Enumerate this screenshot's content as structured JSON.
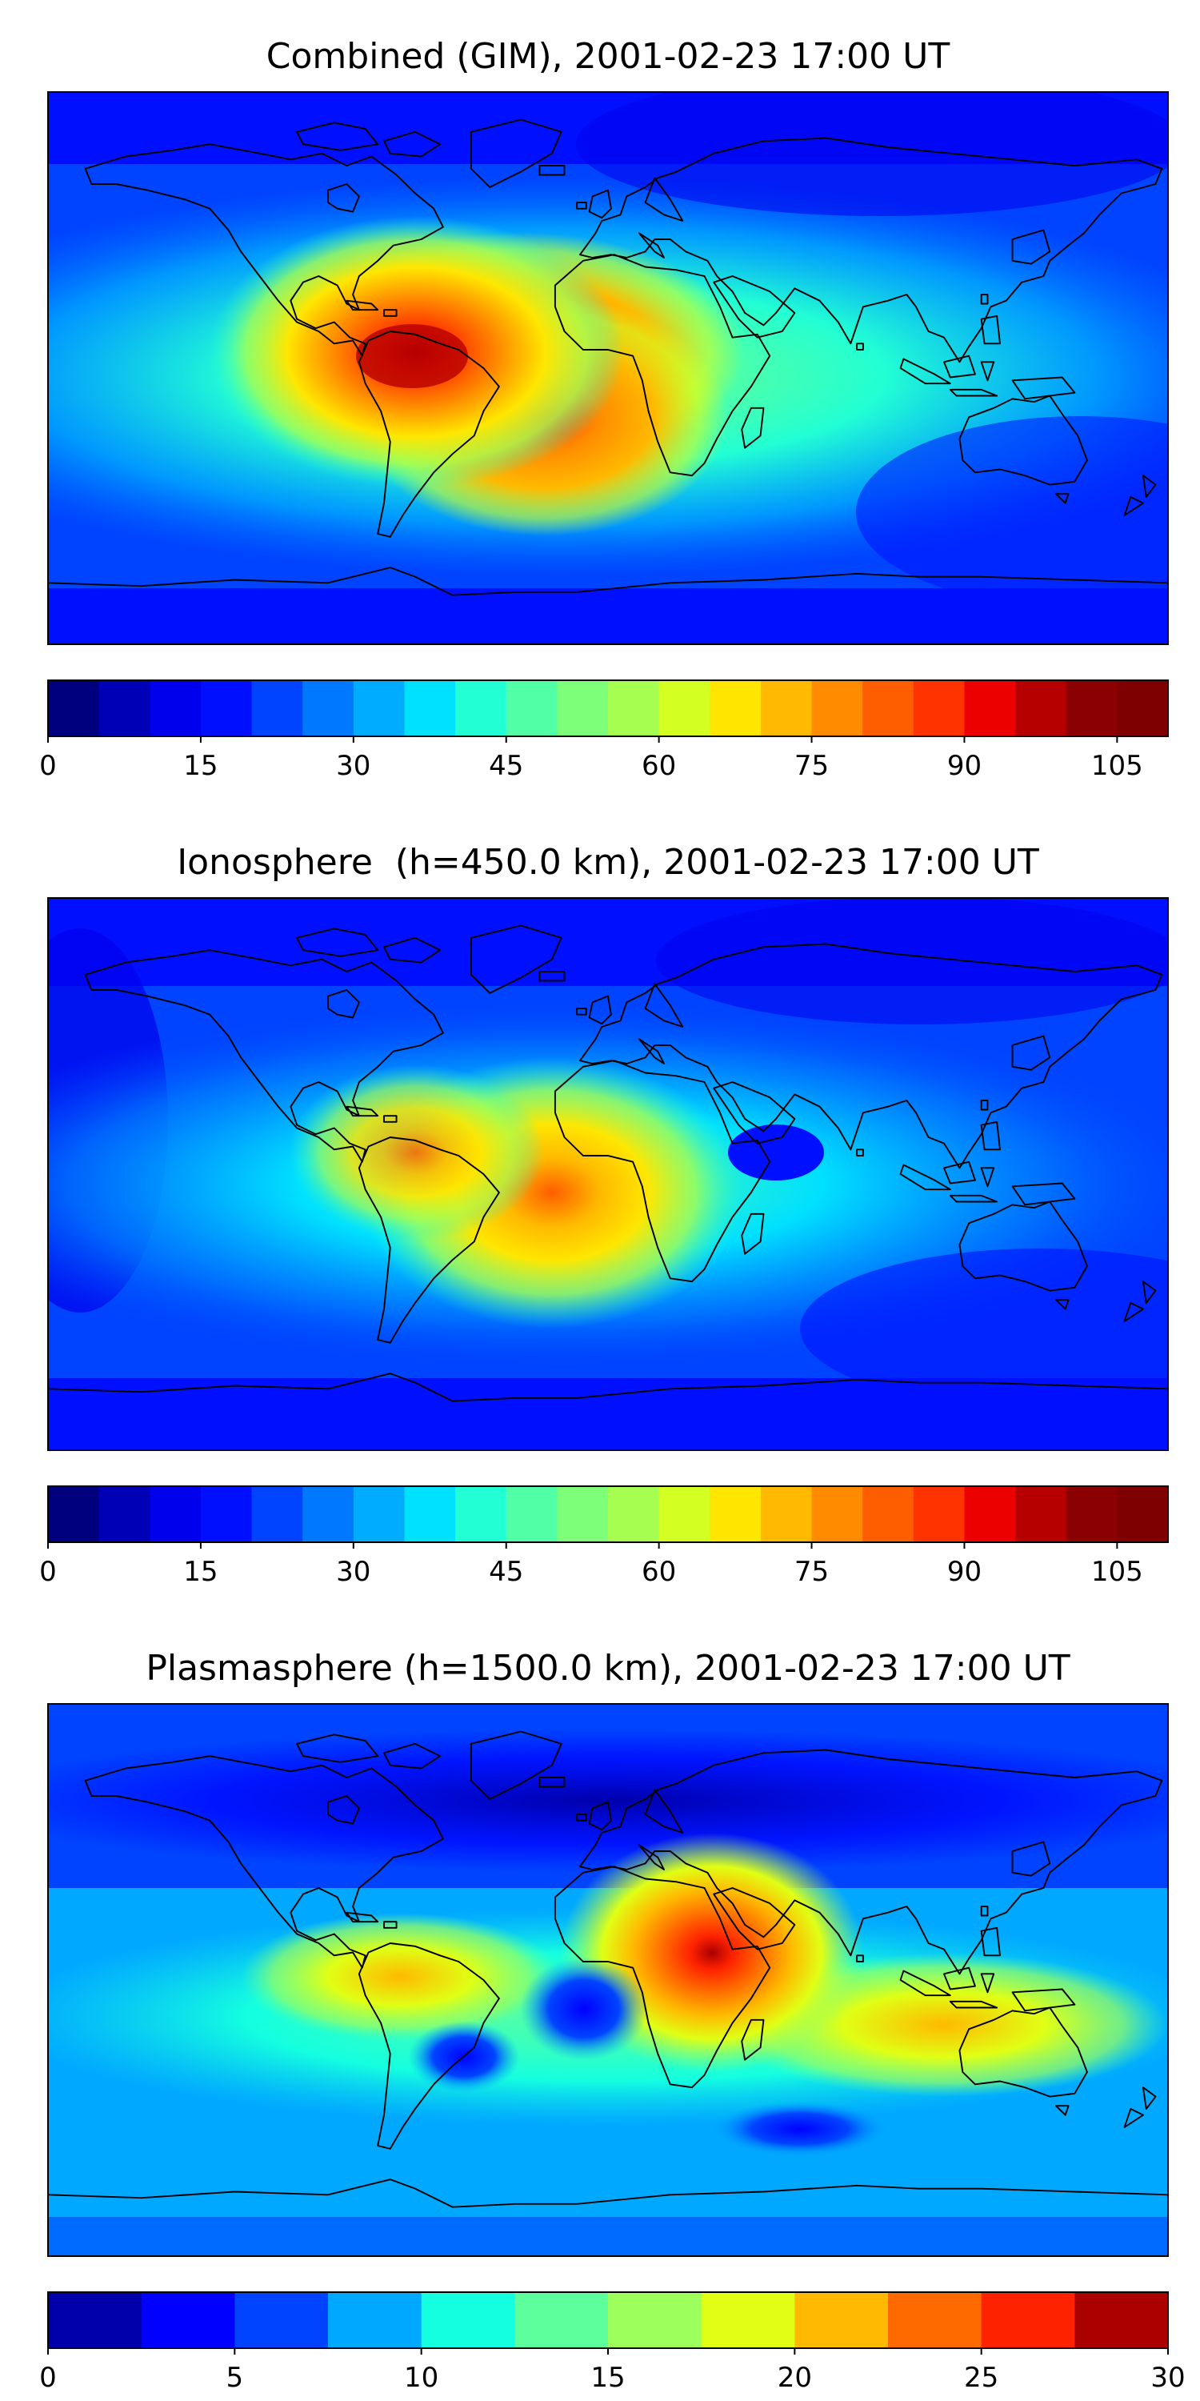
{
  "chart_data": [
    {
      "type": "heatmap",
      "title": "Combined (GIM), 2001-02-23 17:00 UT",
      "colorbar": {
        "min": 0,
        "max": 110,
        "step": 5,
        "ticks": [
          0,
          15,
          30,
          45,
          60,
          75,
          90,
          105
        ]
      },
      "colors": [
        "#00007f",
        "#0000b6",
        "#0000ed",
        "#0010ff",
        "#0044ff",
        "#0078ff",
        "#00acff",
        "#00e0ff",
        "#22ffd4",
        "#50ffa6",
        "#7dff7a",
        "#a6ff50",
        "#d4ff22",
        "#ffe600",
        "#ffb900",
        "#ff8c00",
        "#ff5e00",
        "#ff3300",
        "#ed0000",
        "#b60000",
        "#8b0000",
        "#7f0000"
      ],
      "features": [
        {
          "name": "equatorial-anomaly-south-america",
          "lon": -60,
          "lat": 2,
          "peak": 102
        },
        {
          "name": "south-atlantic-crest",
          "lon": -30,
          "lat": -12,
          "peak": 86
        },
        {
          "name": "tropical-atlantic-crest",
          "lon": -30,
          "lat": 5,
          "peak": 82
        }
      ]
    },
    {
      "type": "heatmap",
      "title": "Ionosphere  (h=450.0 km), 2001-02-23 17:00 UT",
      "colorbar": {
        "min": 0,
        "max": 110,
        "step": 5,
        "ticks": [
          0,
          15,
          30,
          45,
          60,
          75,
          90,
          105
        ]
      },
      "colors": [
        "#00007f",
        "#0000b6",
        "#0000ed",
        "#0010ff",
        "#0044ff",
        "#0078ff",
        "#00acff",
        "#00e0ff",
        "#22ffd4",
        "#50ffa6",
        "#7dff7a",
        "#a6ff50",
        "#d4ff22",
        "#ffe600",
        "#ffb900",
        "#ff8c00",
        "#ff5e00",
        "#ff3300",
        "#ed0000",
        "#b60000",
        "#8b0000",
        "#7f0000"
      ],
      "features": [
        {
          "name": "south-atlantic-crest",
          "lon": -30,
          "lat": -10,
          "peak": 84
        },
        {
          "name": "northern-south-america-crest",
          "lon": -62,
          "lat": 8,
          "peak": 78
        }
      ]
    },
    {
      "type": "heatmap",
      "title": "Plasmasphere (h=1500.0 km), 2001-02-23 17:00 UT",
      "colorbar": {
        "min": 0,
        "max": 30,
        "step": 2.5,
        "ticks": [
          0,
          5,
          10,
          15,
          20,
          25,
          30
        ]
      },
      "colors": [
        "#0000aa",
        "#0000ff",
        "#0044ff",
        "#00a8ff",
        "#14ffe0",
        "#5cff9c",
        "#9cff5c",
        "#e0ff14",
        "#ffb900",
        "#ff6a00",
        "#ff2200",
        "#aa0000"
      ],
      "features": [
        {
          "name": "east-africa-peak",
          "lon": 36,
          "lat": 10,
          "peak": 30
        },
        {
          "name": "indian-ocean-crest",
          "lon": 75,
          "lat": -10,
          "peak": 21
        },
        {
          "name": "south-america-crest",
          "lon": -60,
          "lat": 8,
          "peak": 21
        },
        {
          "name": "atlantic-low",
          "lon": -10,
          "lat": -5,
          "peak": 3
        }
      ]
    }
  ]
}
